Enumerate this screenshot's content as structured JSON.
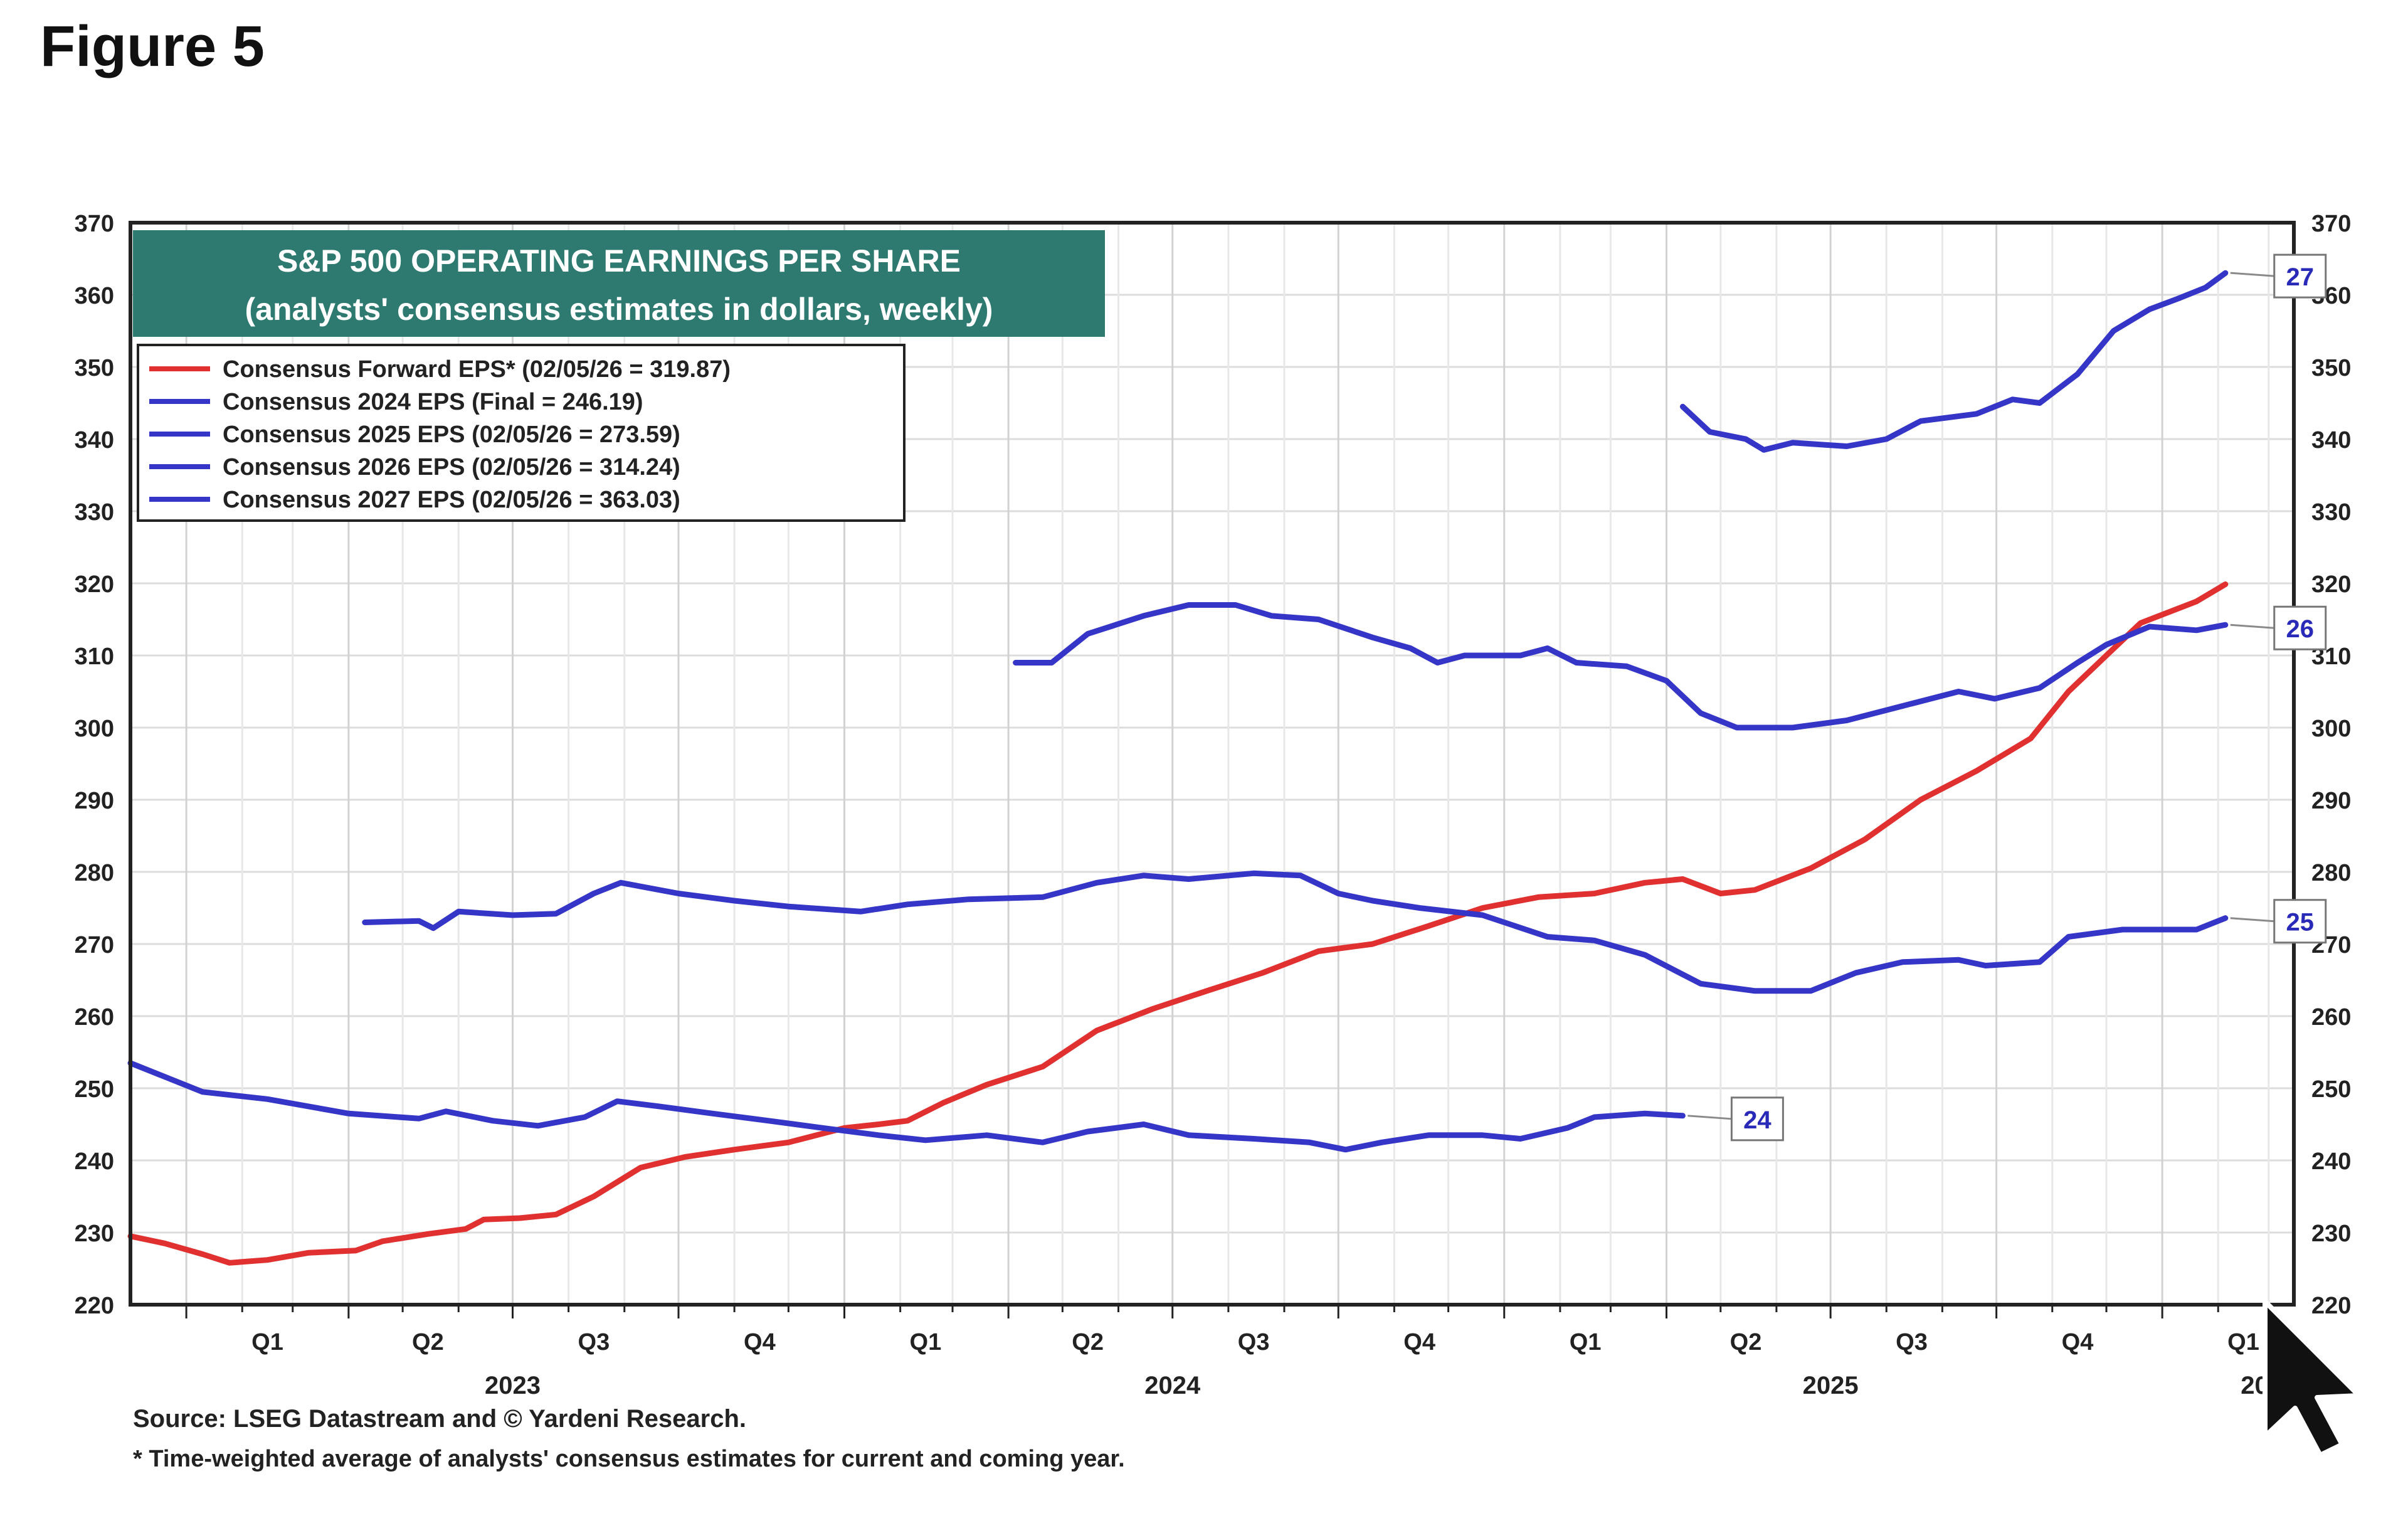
{
  "figure_title": "Figure 5",
  "chart_data": {
    "type": "line",
    "title": "S&P 500 OPERATING EARNINGS PER SHARE",
    "subtitle": "(analysts' consensus estimates in dollars, weekly)",
    "ylim": [
      220,
      370
    ],
    "y_ticks": [
      220,
      230,
      240,
      250,
      260,
      270,
      280,
      290,
      300,
      310,
      320,
      330,
      340,
      350,
      360,
      370
    ],
    "x_range": [
      "2022-12-01",
      "2026-03-15"
    ],
    "quarter_ticks": [
      {
        "label": "Q1",
        "date": "2023-02-15"
      },
      {
        "label": "Q2",
        "date": "2023-05-15"
      },
      {
        "label": "Q3",
        "date": "2023-08-15"
      },
      {
        "label": "Q4",
        "date": "2023-11-15"
      },
      {
        "label": "Q1",
        "date": "2024-02-15"
      },
      {
        "label": "Q2",
        "date": "2024-05-15"
      },
      {
        "label": "Q3",
        "date": "2024-08-15"
      },
      {
        "label": "Q4",
        "date": "2024-11-15"
      },
      {
        "label": "Q1",
        "date": "2025-02-15"
      },
      {
        "label": "Q2",
        "date": "2025-05-15"
      },
      {
        "label": "Q3",
        "date": "2025-08-15"
      },
      {
        "label": "Q4",
        "date": "2025-11-15"
      },
      {
        "label": "Q1",
        "date": "2026-02-15"
      }
    ],
    "year_ticks": [
      {
        "label": "2023",
        "date": "2023-07-01"
      },
      {
        "label": "2024",
        "date": "2024-07-01"
      },
      {
        "label": "2025",
        "date": "2025-07-01"
      },
      {
        "label": "2026",
        "date": "2026-03-01"
      }
    ],
    "grid": true,
    "legend_position": "top-left",
    "series": [
      {
        "name": "Consensus Forward EPS* (02/05/26 = 319.87)",
        "color": "#e03030",
        "points": [
          [
            "2022-12-01",
            229.5
          ],
          [
            "2022-12-20",
            228.5
          ],
          [
            "2023-01-10",
            227.0
          ],
          [
            "2023-01-25",
            225.8
          ],
          [
            "2023-02-15",
            226.2
          ],
          [
            "2023-03-10",
            227.2
          ],
          [
            "2023-04-05",
            227.5
          ],
          [
            "2023-04-20",
            228.8
          ],
          [
            "2023-05-15",
            229.8
          ],
          [
            "2023-06-05",
            230.5
          ],
          [
            "2023-06-15",
            231.8
          ],
          [
            "2023-07-05",
            232.0
          ],
          [
            "2023-07-25",
            232.5
          ],
          [
            "2023-08-15",
            235.0
          ],
          [
            "2023-09-10",
            239.0
          ],
          [
            "2023-10-05",
            240.5
          ],
          [
            "2023-11-01",
            241.5
          ],
          [
            "2023-12-01",
            242.5
          ],
          [
            "2024-01-01",
            244.5
          ],
          [
            "2024-01-20",
            245.0
          ],
          [
            "2024-02-05",
            245.5
          ],
          [
            "2024-02-25",
            248.0
          ],
          [
            "2024-03-20",
            250.5
          ],
          [
            "2024-04-20",
            253.0
          ],
          [
            "2024-05-20",
            258.0
          ],
          [
            "2024-06-20",
            261.0
          ],
          [
            "2024-07-20",
            263.5
          ],
          [
            "2024-08-20",
            266.0
          ],
          [
            "2024-09-20",
            269.0
          ],
          [
            "2024-10-20",
            270.0
          ],
          [
            "2024-11-20",
            272.5
          ],
          [
            "2024-12-20",
            275.0
          ],
          [
            "2025-01-20",
            276.5
          ],
          [
            "2025-02-20",
            277.0
          ],
          [
            "2025-03-20",
            278.5
          ],
          [
            "2025-04-10",
            279.0
          ],
          [
            "2025-05-01",
            277.0
          ],
          [
            "2025-05-20",
            277.5
          ],
          [
            "2025-06-20",
            280.5
          ],
          [
            "2025-07-20",
            284.5
          ],
          [
            "2025-08-20",
            290.0
          ],
          [
            "2025-09-20",
            294.0
          ],
          [
            "2025-10-20",
            298.5
          ],
          [
            "2025-11-10",
            305.0
          ],
          [
            "2025-12-01",
            310.0
          ],
          [
            "2025-12-20",
            314.5
          ],
          [
            "2026-01-20",
            317.5
          ],
          [
            "2026-02-05",
            319.87
          ]
        ]
      },
      {
        "name": "Consensus 2024 EPS (Final = 246.19)",
        "color": "#3535c8",
        "end_label": "24",
        "points": [
          [
            "2022-12-01",
            253.5
          ],
          [
            "2023-01-10",
            249.5
          ],
          [
            "2023-02-15",
            248.5
          ],
          [
            "2023-04-01",
            246.5
          ],
          [
            "2023-05-10",
            245.8
          ],
          [
            "2023-05-25",
            246.8
          ],
          [
            "2023-06-20",
            245.5
          ],
          [
            "2023-07-15",
            244.8
          ],
          [
            "2023-08-10",
            246.0
          ],
          [
            "2023-08-28",
            248.2
          ],
          [
            "2023-09-20",
            247.5
          ],
          [
            "2023-10-20",
            246.5
          ],
          [
            "2023-11-20",
            245.5
          ],
          [
            "2023-12-20",
            244.5
          ],
          [
            "2024-01-20",
            243.5
          ],
          [
            "2024-02-15",
            242.8
          ],
          [
            "2024-03-20",
            243.5
          ],
          [
            "2024-04-20",
            242.5
          ],
          [
            "2024-05-15",
            244.0
          ],
          [
            "2024-06-15",
            245.0
          ],
          [
            "2024-07-10",
            243.5
          ],
          [
            "2024-08-15",
            243.0
          ],
          [
            "2024-09-15",
            242.5
          ],
          [
            "2024-10-05",
            241.5
          ],
          [
            "2024-10-25",
            242.5
          ],
          [
            "2024-11-20",
            243.5
          ],
          [
            "2024-12-20",
            243.5
          ],
          [
            "2025-01-10",
            243.0
          ],
          [
            "2025-02-05",
            244.5
          ],
          [
            "2025-02-20",
            246.0
          ],
          [
            "2025-03-20",
            246.5
          ],
          [
            "2025-04-10",
            246.19
          ]
        ]
      },
      {
        "name": "Consensus 2025 EPS (02/05/26 = 273.59)",
        "color": "#3535c8",
        "end_label": "25",
        "points": [
          [
            "2023-04-10",
            273.0
          ],
          [
            "2023-05-10",
            273.2
          ],
          [
            "2023-05-18",
            272.2
          ],
          [
            "2023-06-01",
            274.5
          ],
          [
            "2023-07-01",
            274.0
          ],
          [
            "2023-07-25",
            274.2
          ],
          [
            "2023-08-15",
            277.0
          ],
          [
            "2023-08-30",
            278.5
          ],
          [
            "2023-10-01",
            277.0
          ],
          [
            "2023-11-01",
            276.0
          ],
          [
            "2023-12-01",
            275.2
          ],
          [
            "2024-01-10",
            274.5
          ],
          [
            "2024-02-05",
            275.5
          ],
          [
            "2024-03-10",
            276.2
          ],
          [
            "2024-04-20",
            276.5
          ],
          [
            "2024-05-20",
            278.5
          ],
          [
            "2024-06-15",
            279.5
          ],
          [
            "2024-07-10",
            279.0
          ],
          [
            "2024-08-15",
            279.8
          ],
          [
            "2024-09-10",
            279.5
          ],
          [
            "2024-10-01",
            277.0
          ],
          [
            "2024-10-20",
            276.0
          ],
          [
            "2024-11-15",
            275.0
          ],
          [
            "2024-12-20",
            274.0
          ],
          [
            "2025-01-25",
            271.0
          ],
          [
            "2025-02-20",
            270.5
          ],
          [
            "2025-03-20",
            268.5
          ],
          [
            "2025-04-20",
            264.5
          ],
          [
            "2025-05-20",
            263.5
          ],
          [
            "2025-06-20",
            263.5
          ],
          [
            "2025-07-15",
            266.0
          ],
          [
            "2025-08-10",
            267.5
          ],
          [
            "2025-09-10",
            267.8
          ],
          [
            "2025-09-25",
            267.0
          ],
          [
            "2025-10-25",
            267.5
          ],
          [
            "2025-11-10",
            271.0
          ],
          [
            "2025-12-10",
            272.0
          ],
          [
            "2026-01-20",
            272.0
          ],
          [
            "2026-02-05",
            273.59
          ]
        ]
      },
      {
        "name": "Consensus 2026 EPS (02/05/26 = 314.24)",
        "color": "#3535c8",
        "end_label": "26",
        "points": [
          [
            "2024-04-05",
            309.0
          ],
          [
            "2024-04-25",
            309.0
          ],
          [
            "2024-05-15",
            313.0
          ],
          [
            "2024-06-15",
            315.5
          ],
          [
            "2024-07-10",
            317.0
          ],
          [
            "2024-08-05",
            317.0
          ],
          [
            "2024-08-25",
            315.5
          ],
          [
            "2024-09-20",
            315.0
          ],
          [
            "2024-10-20",
            312.5
          ],
          [
            "2024-11-10",
            311.0
          ],
          [
            "2024-11-25",
            309.0
          ],
          [
            "2024-12-10",
            310.0
          ],
          [
            "2025-01-10",
            310.0
          ],
          [
            "2025-01-25",
            311.0
          ],
          [
            "2025-02-10",
            309.0
          ],
          [
            "2025-03-10",
            308.5
          ],
          [
            "2025-04-01",
            306.5
          ],
          [
            "2025-04-20",
            302.0
          ],
          [
            "2025-05-10",
            300.0
          ],
          [
            "2025-06-10",
            300.0
          ],
          [
            "2025-07-10",
            301.0
          ],
          [
            "2025-08-10",
            303.0
          ],
          [
            "2025-09-10",
            305.0
          ],
          [
            "2025-09-30",
            304.0
          ],
          [
            "2025-10-25",
            305.5
          ],
          [
            "2025-11-15",
            309.0
          ],
          [
            "2025-12-01",
            311.5
          ],
          [
            "2025-12-25",
            314.0
          ],
          [
            "2026-01-20",
            313.5
          ],
          [
            "2026-02-05",
            314.24
          ]
        ]
      },
      {
        "name": "Consensus 2027 EPS (02/05/26 = 363.03)",
        "color": "#3535c8",
        "end_label": "27",
        "points": [
          [
            "2025-04-10",
            344.5
          ],
          [
            "2025-04-25",
            341.0
          ],
          [
            "2025-05-15",
            340.0
          ],
          [
            "2025-05-25",
            338.5
          ],
          [
            "2025-06-10",
            339.5
          ],
          [
            "2025-07-10",
            339.0
          ],
          [
            "2025-08-01",
            340.0
          ],
          [
            "2025-08-20",
            342.5
          ],
          [
            "2025-09-20",
            343.5
          ],
          [
            "2025-10-10",
            345.5
          ],
          [
            "2025-10-25",
            345.0
          ],
          [
            "2025-11-15",
            349.0
          ],
          [
            "2025-12-05",
            355.0
          ],
          [
            "2025-12-25",
            358.0
          ],
          [
            "2026-01-10",
            359.5
          ],
          [
            "2026-01-25",
            361.0
          ],
          [
            "2026-02-05",
            363.03
          ]
        ]
      }
    ]
  },
  "footnotes": {
    "source": "Source: LSEG Datastream and © Yardeni Research.",
    "note": "* Time-weighted average of analysts' consensus estimates for current and coming year."
  }
}
